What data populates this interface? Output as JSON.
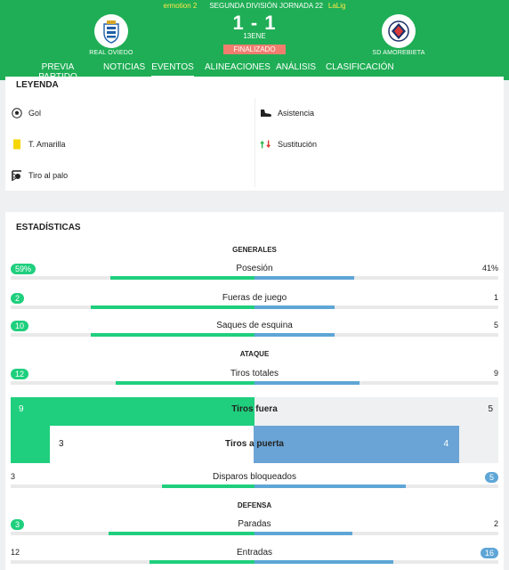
{
  "header": {
    "ticker_left": "ermotion 2",
    "ticker_center": "SEGUNDA DIVISIÓN JORNADA 22",
    "ticker_right": "LaLig",
    "home_team": "REAL OVIEDO",
    "away_team": "SD AMOREBIETA",
    "score": "1 - 1",
    "date": "13ENE",
    "status": "FINALIZADO",
    "nav": [
      "PREVIA PARTIDO",
      "NOTICIAS",
      "EVENTOS",
      "ALINEACIONES",
      "ANÁLISIS",
      "CLASIFICACIÓN"
    ],
    "active_tab": "EVENTOS"
  },
  "legend": {
    "title": "LEYENDA",
    "items": {
      "goal": "Gol",
      "assist": "Asistencia",
      "yellow": "T. Amarilla",
      "sub": "Sustitución",
      "post": "Tiro al palo"
    }
  },
  "stats": {
    "title": "ESTADÍSTICAS",
    "sections": {
      "general": "GENERALES",
      "attack": "ATAQUE",
      "defense": "DEFENSA"
    },
    "rows": [
      {
        "label": "Posesión",
        "home": "59%",
        "away": "41%",
        "home_pct": 59,
        "away_pct": 41,
        "highlight": "home"
      },
      {
        "label": "Fueras de juego",
        "home": "2",
        "away": "1",
        "home_pct": 67,
        "away_pct": 33,
        "highlight": "home"
      },
      {
        "label": "Saques de esquina",
        "home": "10",
        "away": "5",
        "home_pct": 67,
        "away_pct": 33,
        "highlight": "home"
      },
      {
        "label": "Tiros totales",
        "home": "12",
        "away": "9",
        "home_pct": 57,
        "away_pct": 43,
        "highlight": "home"
      },
      {
        "label": "Disparos bloqueados",
        "home": "3",
        "away": "5",
        "home_pct": 38,
        "away_pct": 62,
        "highlight": "away"
      },
      {
        "label": "Paradas",
        "home": "3",
        "away": "2",
        "home_pct": 60,
        "away_pct": 40,
        "highlight": "home"
      },
      {
        "label": "Entradas",
        "home": "12",
        "away": "16",
        "home_pct": 43,
        "away_pct": 57,
        "highlight": "away"
      }
    ],
    "shots_off": {
      "label": "Tiros fuera",
      "home": "9",
      "away": "5",
      "home_pct": 64
    },
    "shots_on": {
      "label": "Tiros a puerta",
      "home": "3",
      "away": "4",
      "away_pct": 57
    }
  },
  "colors": {
    "brand": "#1fae55",
    "home": "#1fcf7d",
    "away": "#5ea6d6",
    "status": "#f07d6e"
  }
}
